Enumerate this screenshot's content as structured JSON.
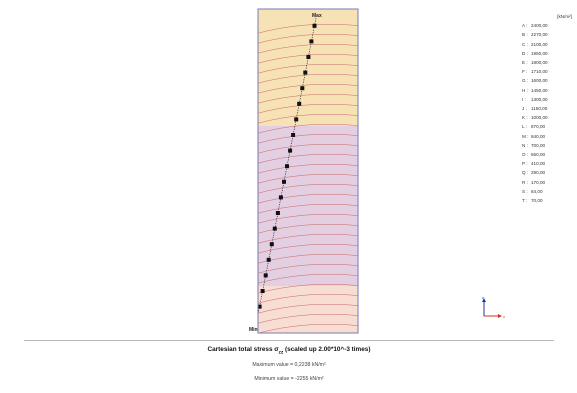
{
  "plot": {
    "max_marker": "Max",
    "min_marker": "Min",
    "colors": {
      "frame": "#7a7ab4",
      "upper_zone": "#f7e2b6",
      "lower_zone": "#e3cfe1",
      "bottom_zone": "#f8ddd2",
      "contour": "#c46a6a",
      "marker": "#111111"
    }
  },
  "legend": {
    "unit": "[kN/m²]",
    "entries": [
      {
        "key": "A :",
        "value": "2400,00"
      },
      {
        "key": "B :",
        "value": "2270,00"
      },
      {
        "key": "C :",
        "value": "2100,00"
      },
      {
        "key": "D :",
        "value": "1950,00"
      },
      {
        "key": "E :",
        "value": "1800,00"
      },
      {
        "key": "F :",
        "value": "1710,00"
      },
      {
        "key": "G :",
        "value": "1600,00"
      },
      {
        "key": "H :",
        "value": "1450,00"
      },
      {
        "key": "I :",
        "value": "1300,00"
      },
      {
        "key": "J :",
        "value": "1150,00"
      },
      {
        "key": "K :",
        "value": "1000,00"
      },
      {
        "key": "L :",
        "value": "870,00"
      },
      {
        "key": "M :",
        "value": "840,00"
      },
      {
        "key": "N :",
        "value": "700,00"
      },
      {
        "key": "O :",
        "value": "560,00"
      },
      {
        "key": "P :",
        "value": "410,00"
      },
      {
        "key": "Q :",
        "value": "290,00"
      },
      {
        "key": "R :",
        "value": "170,00"
      },
      {
        "key": "S :",
        "value": "64,00"
      },
      {
        "key": "T :",
        "value": "70,00"
      }
    ]
  },
  "axes": {
    "z_label": "z",
    "x_label": "x",
    "z_color": "#2233aa",
    "x_color": "#cc3322"
  },
  "footer": {
    "title_main": "Cartesian total stress σ",
    "title_sub": "zz",
    "title_tail": " (scaled up 2.00*10^-3 times)",
    "max_label": "Maximum value = 0,2238 kN/m²",
    "min_label": "Minimum value = -2255 kN/m²"
  }
}
